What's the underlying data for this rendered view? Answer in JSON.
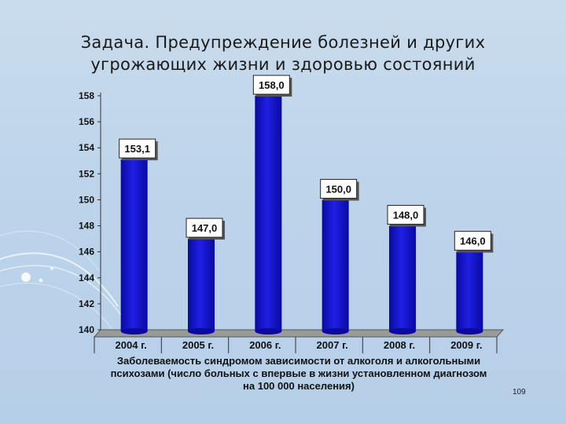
{
  "slide": {
    "title_line1": "Задача. Предупреждение болезней и других",
    "title_line2": "угрожающих жизни и здоровью состояний",
    "page_number": "109"
  },
  "colors": {
    "background": "#bcd3ea",
    "bar": "#1f1fe6",
    "bar_dark": "#0a0aa0",
    "floor": "#9a9a9a"
  },
  "chart_data": {
    "type": "bar",
    "categories": [
      "2004 г.",
      "2005 г.",
      "2006 г.",
      "2007 г.",
      "2008 г.",
      "2009 г."
    ],
    "values": [
      153.1,
      147.0,
      158.0,
      150.0,
      148.0,
      146.0
    ],
    "data_labels": [
      "153,1",
      "147,0",
      "158,0",
      "150,0",
      "148,0",
      "146,0"
    ],
    "title": "",
    "xlabel": "Заболеваемость синдромом зависимости от алкоголя и алкогольными психозами (число больных с впервые в жизни установленном диагнозом на 100 000 населения)",
    "ylabel": "",
    "ylim": [
      140,
      158
    ],
    "yticks": [
      140,
      142,
      144,
      146,
      148,
      150,
      152,
      154,
      156,
      158
    ],
    "grid": false,
    "legend": "none"
  }
}
